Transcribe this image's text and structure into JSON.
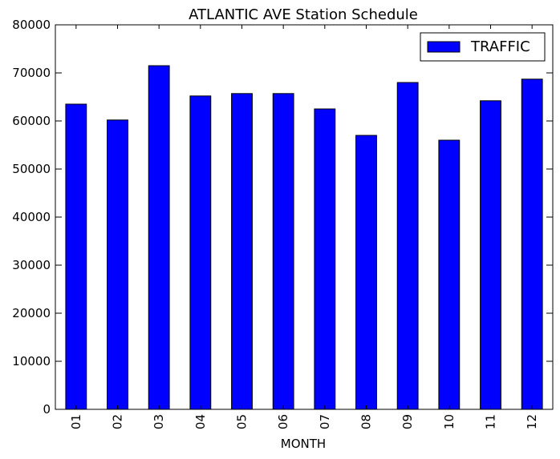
{
  "chart_data": {
    "type": "bar",
    "title": "ATLANTIC AVE Station Schedule",
    "xlabel": "MONTH",
    "ylabel": "",
    "categories": [
      "01",
      "02",
      "03",
      "04",
      "05",
      "06",
      "07",
      "08",
      "09",
      "10",
      "11",
      "12"
    ],
    "series": [
      {
        "name": "TRAFFIC",
        "color": "#0000ff",
        "values": [
          63500,
          60200,
          71500,
          65200,
          65700,
          65700,
          62500,
          57000,
          68000,
          56000,
          64200,
          68700
        ]
      }
    ],
    "ylim": [
      0,
      80000
    ],
    "yticks": [
      0,
      10000,
      20000,
      30000,
      40000,
      50000,
      60000,
      70000,
      80000
    ],
    "grid": false,
    "legend_position": "top-right"
  }
}
